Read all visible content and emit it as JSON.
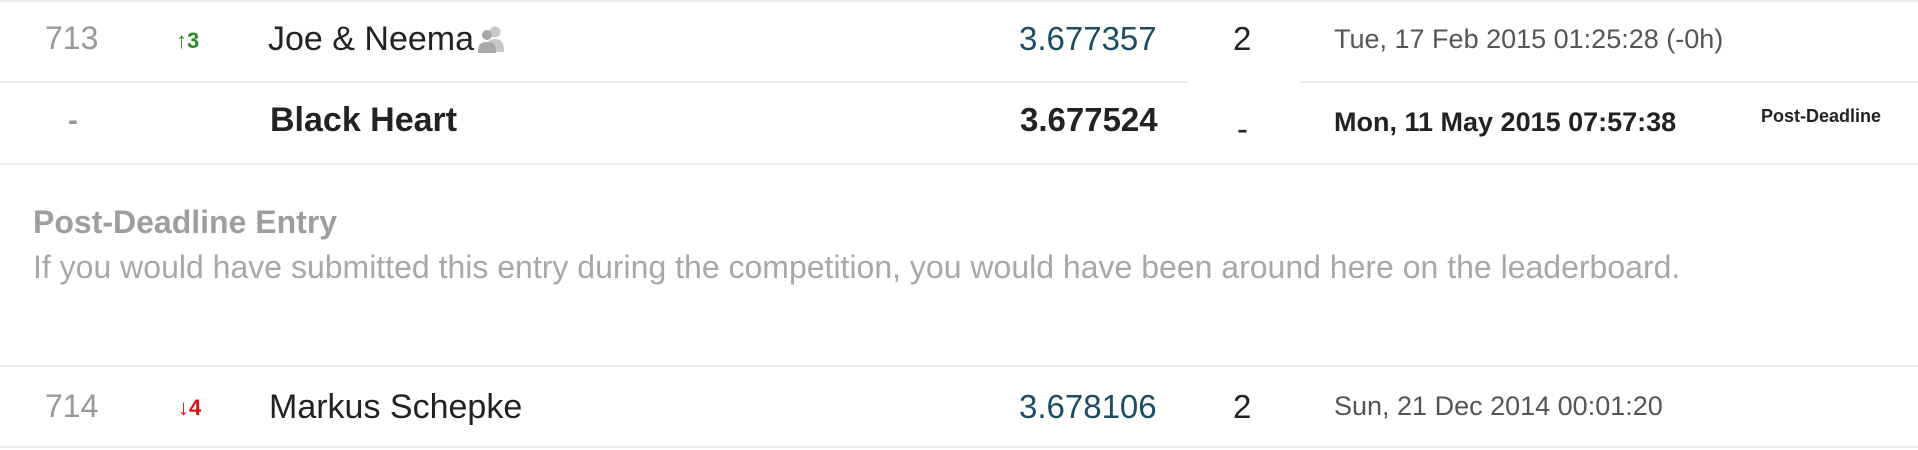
{
  "rows_top": [
    {
      "rank": "713",
      "delta": "↑3",
      "delta_dir": "up",
      "name": "Joe & Neema",
      "team_icon": "team-icon",
      "score": "3.677357",
      "entries": "2",
      "date": "Tue, 17 Feb 2015 01:25:28 (-0h)"
    }
  ],
  "post_deadline_row": {
    "rank": "-",
    "name": "Black Heart",
    "score": "3.677524",
    "entries": "-",
    "date": "Mon, 11 May 2015 07:57:38",
    "tag": "Post-Deadline"
  },
  "post_deadline_note": {
    "title": "Post-Deadline Entry",
    "text": "If you would have submitted this entry during the competition, you would have been around here on the leaderboard."
  },
  "rows_bottom": [
    {
      "rank": "714",
      "delta": "↓4",
      "delta_dir": "down",
      "name": "Markus Schepke",
      "score": "3.678106",
      "entries": "2",
      "date": "Sun, 21 Dec 2014 00:01:20"
    }
  ],
  "colors": {
    "up": "#2e8b23",
    "down": "#e01010",
    "score": "#1b4c63",
    "muted": "#9e9e9e"
  }
}
